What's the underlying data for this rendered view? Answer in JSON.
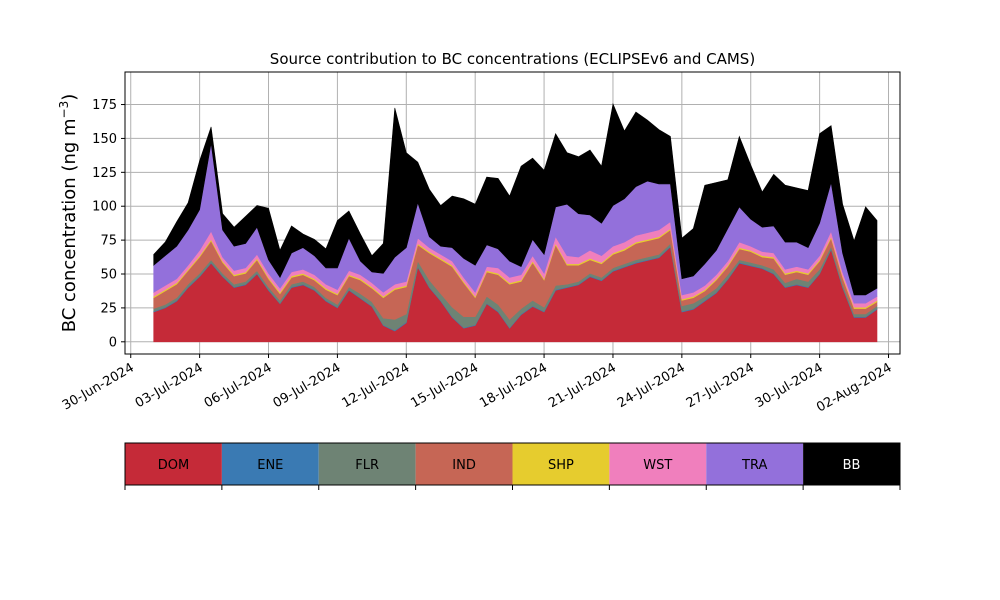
{
  "chart_data": {
    "type": "area",
    "title": "Source contribution to BC concentrations (ECLIPSEv6 and CAMS)",
    "ylabel_text": "BC concentration (ng m",
    "ylabel_exp": "−3",
    "ylabel_close": ")",
    "ylim": [
      -9,
      199
    ],
    "yticks": [
      0,
      25,
      50,
      75,
      100,
      125,
      150,
      175
    ],
    "x_range": [
      "2024-06-29T18:00",
      "2024-08-02T12:00"
    ],
    "x_ticks": [
      "30-Jun-2024",
      "03-Jul-2024",
      "06-Jul-2024",
      "09-Jul-2024",
      "12-Jul-2024",
      "15-Jul-2024",
      "18-Jul-2024",
      "21-Jul-2024",
      "24-Jul-2024",
      "27-Jul-2024",
      "30-Jul-2024",
      "02-Aug-2024"
    ],
    "x_tick_dates": [
      "2024-06-30",
      "2024-07-03",
      "2024-07-06",
      "2024-07-09",
      "2024-07-12",
      "2024-07-15",
      "2024-07-18",
      "2024-07-21",
      "2024-07-24",
      "2024-07-27",
      "2024-07-30",
      "2024-08-02"
    ],
    "grid": true,
    "stacked": true,
    "x": [
      "2024-07-01",
      "2024-07-01T12:00",
      "2024-07-02",
      "2024-07-02T12:00",
      "2024-07-03",
      "2024-07-03T12:00",
      "2024-07-04",
      "2024-07-04T12:00",
      "2024-07-05",
      "2024-07-05T12:00",
      "2024-07-06",
      "2024-07-06T12:00",
      "2024-07-07",
      "2024-07-07T12:00",
      "2024-07-08",
      "2024-07-08T12:00",
      "2024-07-09",
      "2024-07-09T12:00",
      "2024-07-10",
      "2024-07-10T12:00",
      "2024-07-11",
      "2024-07-11T12:00",
      "2024-07-12",
      "2024-07-12T12:00",
      "2024-07-13",
      "2024-07-13T12:00",
      "2024-07-14",
      "2024-07-14T12:00",
      "2024-07-15",
      "2024-07-15T12:00",
      "2024-07-16",
      "2024-07-16T12:00",
      "2024-07-17",
      "2024-07-17T12:00",
      "2024-07-18",
      "2024-07-18T12:00",
      "2024-07-19",
      "2024-07-19T12:00",
      "2024-07-20",
      "2024-07-20T12:00",
      "2024-07-21",
      "2024-07-21T12:00",
      "2024-07-22",
      "2024-07-22T12:00",
      "2024-07-23",
      "2024-07-23T12:00",
      "2024-07-24",
      "2024-07-24T12:00",
      "2024-07-25",
      "2024-07-25T12:00",
      "2024-07-26",
      "2024-07-26T12:00",
      "2024-07-27",
      "2024-07-27T12:00",
      "2024-07-28",
      "2024-07-28T12:00",
      "2024-07-29",
      "2024-07-29T12:00",
      "2024-07-30",
      "2024-07-30T12:00",
      "2024-07-31",
      "2024-07-31T12:00",
      "2024-08-01",
      "2024-08-01T12:00"
    ],
    "series": [
      {
        "name": "DOM",
        "color": "#c52a38",
        "values": [
          22,
          25,
          30,
          40,
          48,
          58,
          48,
          40,
          42,
          50,
          38,
          28,
          40,
          42,
          38,
          30,
          25,
          38,
          32,
          26,
          12,
          8,
          14,
          55,
          40,
          30,
          18,
          10,
          12,
          28,
          22,
          10,
          20,
          26,
          22,
          38,
          40,
          42,
          48,
          45,
          52,
          55,
          58,
          60,
          62,
          70,
          22,
          24,
          30,
          36,
          46,
          58,
          56,
          54,
          50,
          40,
          42,
          40,
          50,
          68,
          40,
          18,
          18,
          24
        ]
      },
      {
        "name": "ENE",
        "color": "#3a7ab3",
        "values": [
          0.5,
          0.5,
          0.5,
          0.5,
          0.5,
          0.5,
          0.5,
          0.5,
          0.5,
          0.5,
          0.5,
          0.5,
          0.5,
          0.5,
          0.5,
          0.5,
          0.5,
          0.5,
          0.5,
          0.5,
          0.5,
          0.5,
          0.5,
          0.5,
          0.5,
          0.5,
          0.5,
          0.5,
          0.5,
          0.5,
          0.5,
          0.5,
          0.5,
          0.5,
          0.5,
          0.5,
          0.5,
          0.5,
          0.5,
          0.5,
          0.5,
          0.5,
          0.5,
          0.5,
          0.5,
          0.5,
          0.5,
          0.5,
          0.5,
          0.5,
          0.5,
          0.5,
          0.5,
          0.5,
          0.5,
          0.5,
          0.5,
          0.5,
          0.5,
          0.5,
          0.5,
          0.5,
          0.5,
          0.5
        ]
      },
      {
        "name": "FLR",
        "color": "#6e8374",
        "values": [
          2,
          2,
          2,
          2,
          2,
          2,
          2,
          2,
          2,
          2,
          2,
          2,
          2,
          2,
          2,
          2,
          2,
          2,
          3,
          3,
          5,
          8,
          6,
          4,
          5,
          5,
          7,
          8,
          6,
          5,
          5,
          6,
          4,
          4,
          3,
          3,
          2,
          2,
          2,
          2,
          2,
          2,
          2,
          2,
          2,
          2,
          4,
          4,
          3,
          3,
          3,
          2,
          2,
          2,
          3,
          3,
          4,
          4,
          3,
          2,
          2,
          2,
          2,
          2
        ]
      },
      {
        "name": "IND",
        "color": "#c66655",
        "values": [
          8,
          10,
          10,
          10,
          12,
          14,
          8,
          6,
          6,
          8,
          6,
          5,
          5,
          5,
          5,
          6,
          7,
          8,
          10,
          10,
          15,
          22,
          20,
          12,
          20,
          25,
          30,
          25,
          14,
          18,
          22,
          26,
          20,
          28,
          20,
          30,
          14,
          12,
          10,
          10,
          10,
          10,
          12,
          12,
          12,
          10,
          4,
          4,
          4,
          6,
          6,
          8,
          8,
          6,
          8,
          6,
          5,
          5,
          6,
          6,
          5,
          4,
          4,
          3
        ]
      },
      {
        "name": "SHP",
        "color": "#e6cc2e",
        "values": [
          1,
          1,
          1,
          1,
          1,
          1,
          1,
          1,
          1,
          1,
          1,
          1,
          1,
          1,
          1,
          1,
          1,
          1,
          1,
          1,
          1,
          1,
          1,
          1,
          1,
          1,
          1,
          1,
          1,
          1,
          1,
          1,
          1,
          1,
          1,
          1,
          1,
          1,
          1,
          1,
          1,
          1,
          1,
          1,
          1,
          1,
          1,
          1,
          1,
          1,
          1,
          1,
          1,
          1,
          1,
          1,
          1,
          1,
          1,
          1,
          1,
          1,
          1,
          1
        ]
      },
      {
        "name": "WST",
        "color": "#f07fbd",
        "values": [
          3,
          3,
          3,
          3,
          4,
          6,
          3,
          3,
          3,
          3,
          3,
          3,
          3,
          3,
          3,
          3,
          3,
          3,
          3,
          3,
          3,
          3,
          3,
          4,
          3,
          3,
          3,
          3,
          3,
          3,
          4,
          4,
          4,
          4,
          4,
          5,
          6,
          5,
          6,
          5,
          5,
          5,
          5,
          5,
          5,
          5,
          3,
          3,
          3,
          3,
          3,
          4,
          3,
          3,
          3,
          3,
          3,
          3,
          3,
          4,
          3,
          3,
          3,
          3
        ]
      },
      {
        "name": "TRA",
        "color": "#9370db",
        "values": [
          20,
          22,
          24,
          26,
          30,
          65,
          20,
          18,
          18,
          20,
          10,
          8,
          14,
          16,
          14,
          12,
          16,
          24,
          10,
          8,
          14,
          20,
          25,
          26,
          8,
          6,
          10,
          14,
          20,
          16,
          14,
          12,
          6,
          12,
          14,
          22,
          38,
          32,
          26,
          24,
          30,
          32,
          36,
          38,
          34,
          28,
          12,
          12,
          16,
          18,
          24,
          26,
          20,
          18,
          20,
          20,
          18,
          16,
          24,
          36,
          14,
          6,
          6,
          6
        ]
      },
      {
        "name": "BB",
        "color": "#000000",
        "values": [
          8,
          10,
          18,
          20,
          36,
          12,
          12,
          14,
          20,
          16,
          38,
          20,
          20,
          10,
          12,
          14,
          35,
          20,
          20,
          12,
          22,
          110,
          70,
          30,
          35,
          30,
          38,
          44,
          45,
          50,
          52,
          48,
          74,
          60,
          62,
          54,
          38,
          42,
          48,
          42,
          75,
          50,
          55,
          45,
          40,
          35,
          30,
          35,
          58,
          50,
          36,
          52,
          40,
          26,
          38,
          42,
          40,
          42,
          66,
          42,
          36,
          40,
          65,
          50
        ]
      }
    ]
  },
  "legend": {
    "items": [
      {
        "name": "DOM",
        "color": "#c52a38",
        "text_color": "#000000"
      },
      {
        "name": "ENE",
        "color": "#3a7ab3",
        "text_color": "#000000"
      },
      {
        "name": "FLR",
        "color": "#6e8374",
        "text_color": "#000000"
      },
      {
        "name": "IND",
        "color": "#c66655",
        "text_color": "#000000"
      },
      {
        "name": "SHP",
        "color": "#e6cc2e",
        "text_color": "#000000"
      },
      {
        "name": "WST",
        "color": "#f07fbd",
        "text_color": "#000000"
      },
      {
        "name": "TRA",
        "color": "#9370db",
        "text_color": "#000000"
      },
      {
        "name": "BB",
        "color": "#000000",
        "text_color": "#ffffff"
      }
    ]
  }
}
